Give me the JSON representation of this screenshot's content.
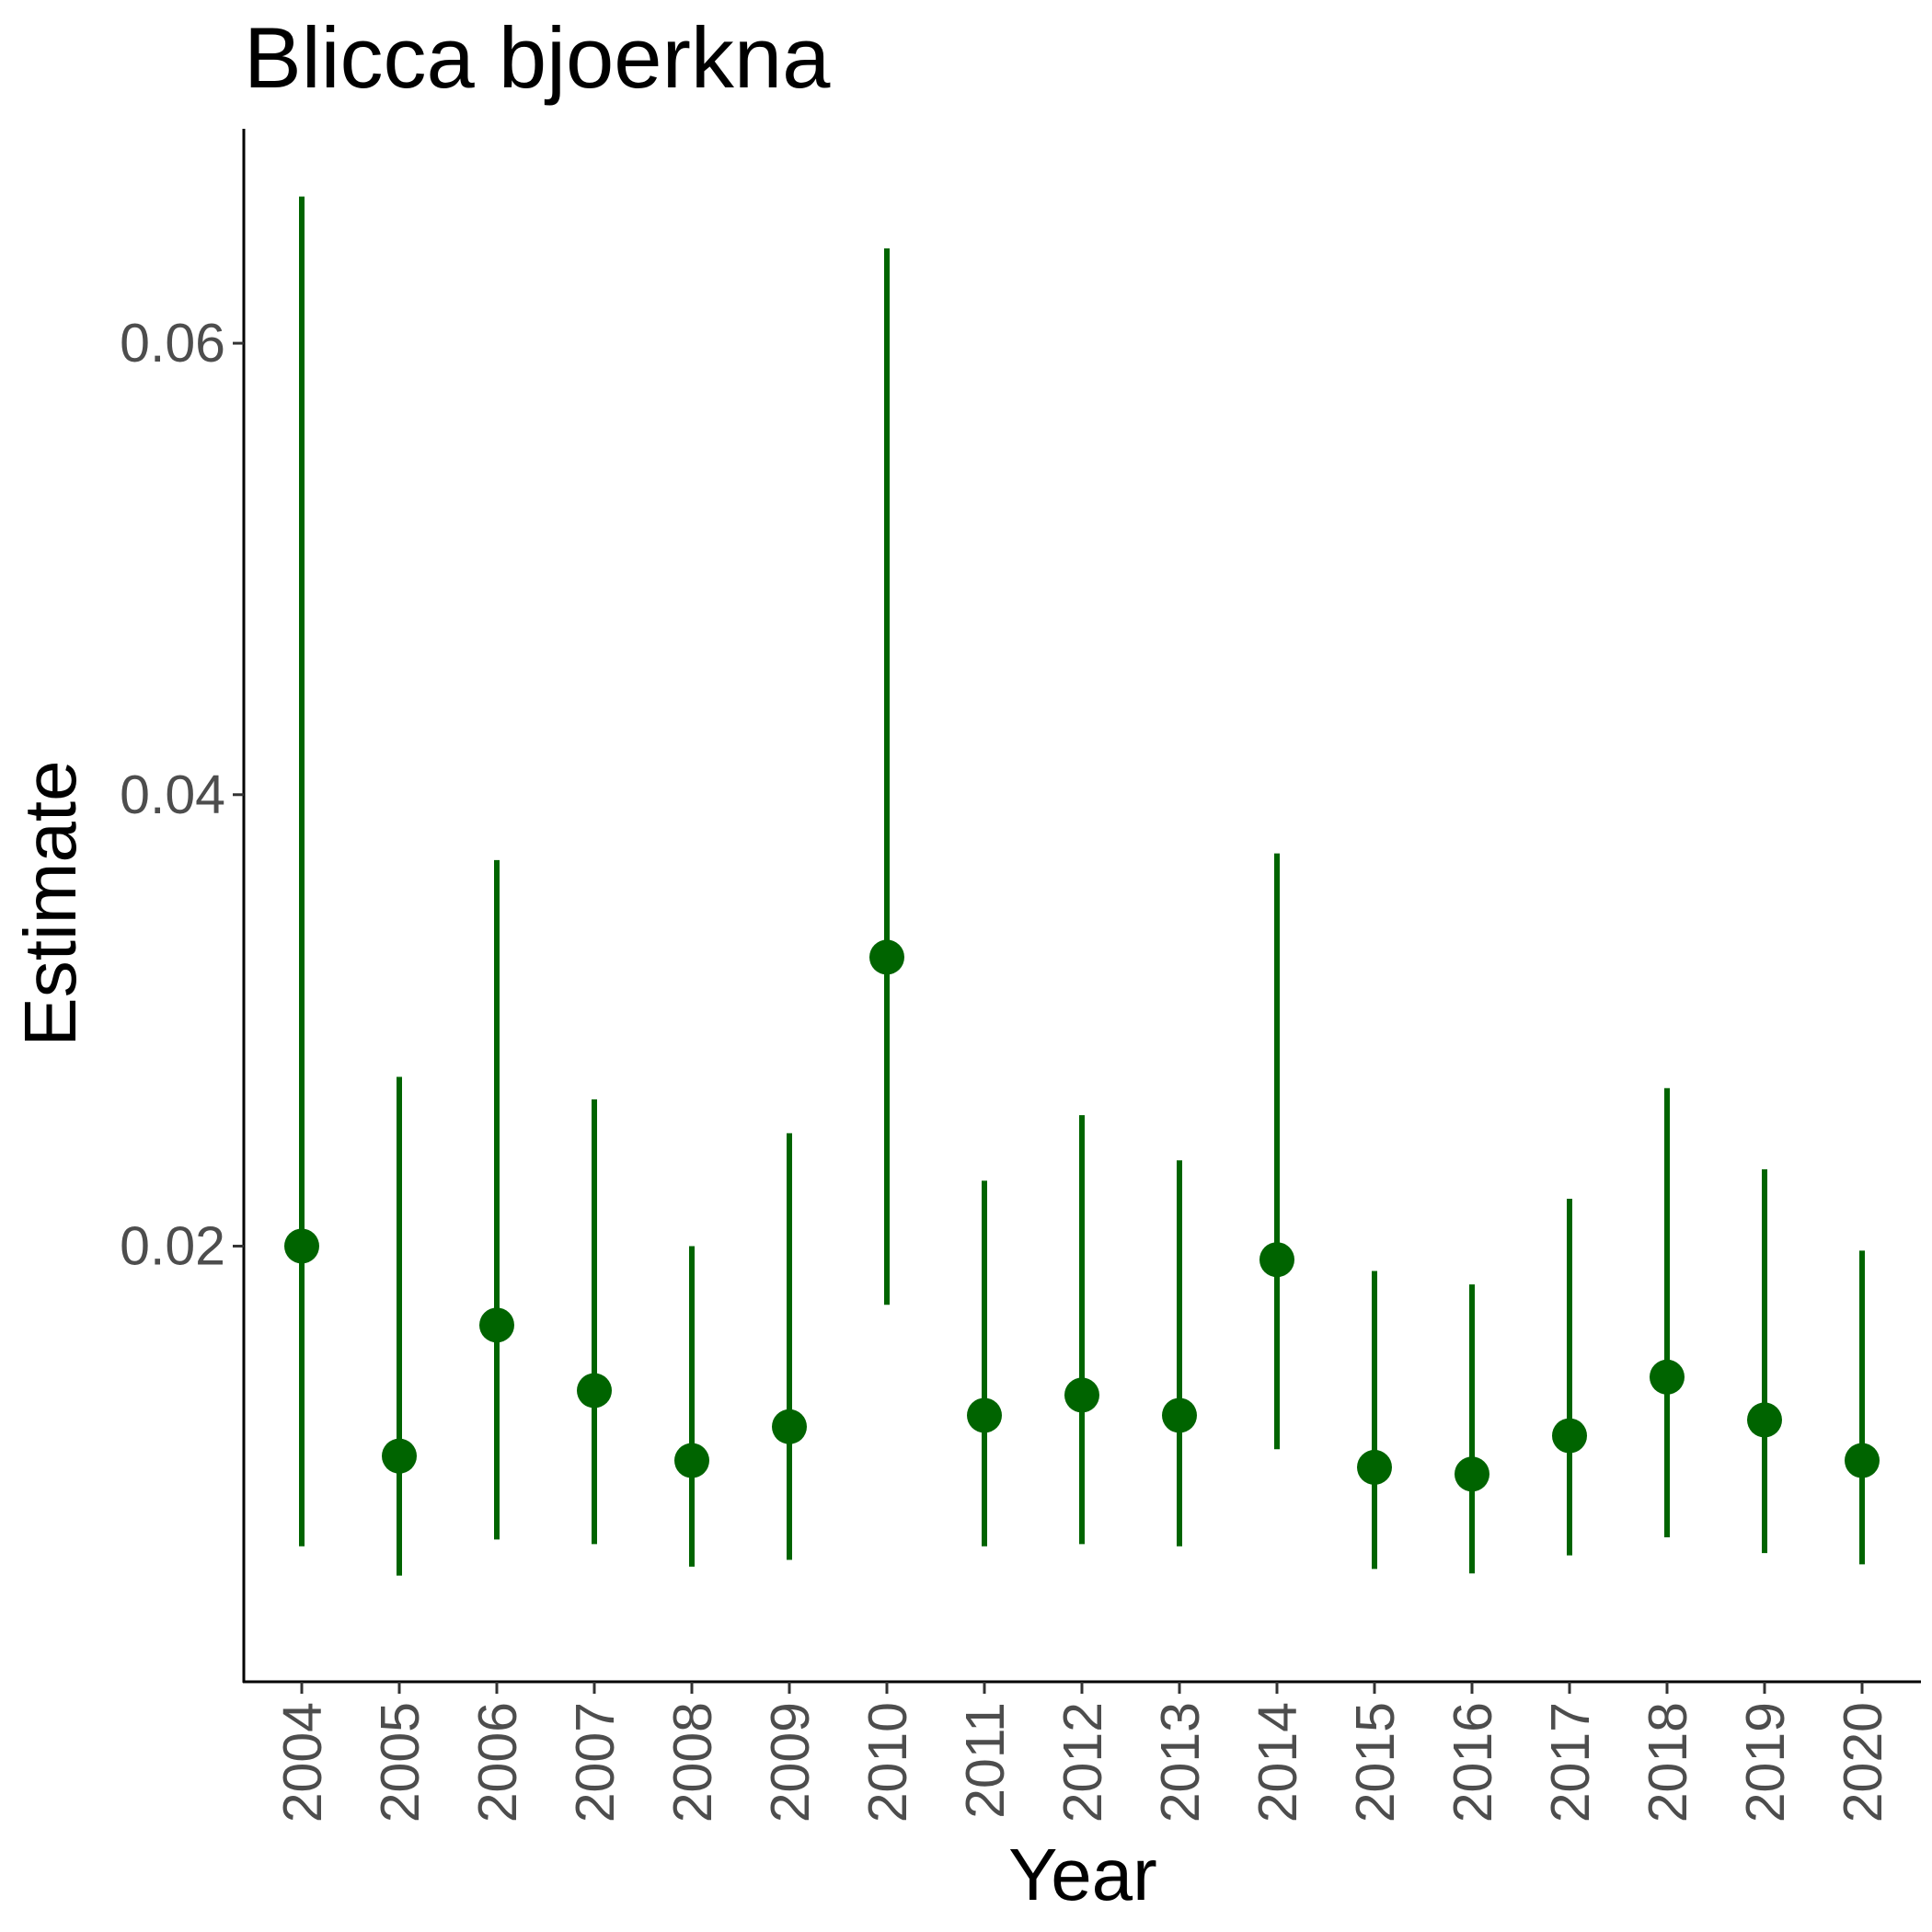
{
  "chart_data": {
    "type": "scatter",
    "title": "Blicca bjoerkna",
    "xlabel": "Year",
    "ylabel": "Estimate",
    "categories": [
      "2004",
      "2005",
      "2006",
      "2007",
      "2008",
      "2009",
      "2010",
      "2011",
      "2012",
      "2013",
      "2014",
      "2015",
      "2016",
      "2017",
      "2018",
      "2019",
      "2020"
    ],
    "series": [
      {
        "estimate": [
          0.02,
          0.0107,
          0.0165,
          0.0136,
          0.0105,
          0.012,
          0.0328,
          0.0125,
          0.0134,
          0.0125,
          0.0194,
          0.0102,
          0.0099,
          0.0116,
          0.0142,
          0.0123,
          0.0105
        ],
        "lower": [
          0.0067,
          0.0054,
          0.007,
          0.0068,
          0.0058,
          0.0061,
          0.0174,
          0.0067,
          0.0068,
          0.0067,
          0.011,
          0.0057,
          0.0055,
          0.0063,
          0.0071,
          0.0064,
          0.0059
        ],
        "upper": [
          0.0665,
          0.0275,
          0.0371,
          0.0265,
          0.02,
          0.025,
          0.0642,
          0.0229,
          0.0258,
          0.0238,
          0.0374,
          0.0189,
          0.0183,
          0.0221,
          0.027,
          0.0234,
          0.0198
        ]
      }
    ],
    "ylim": [
      0.0007,
      0.0695
    ],
    "yticks": [
      0.02,
      0.04,
      0.06
    ],
    "ytick_labels": [
      "0.02",
      "0.04",
      "0.06"
    ],
    "grid": false,
    "color": "#006400"
  }
}
